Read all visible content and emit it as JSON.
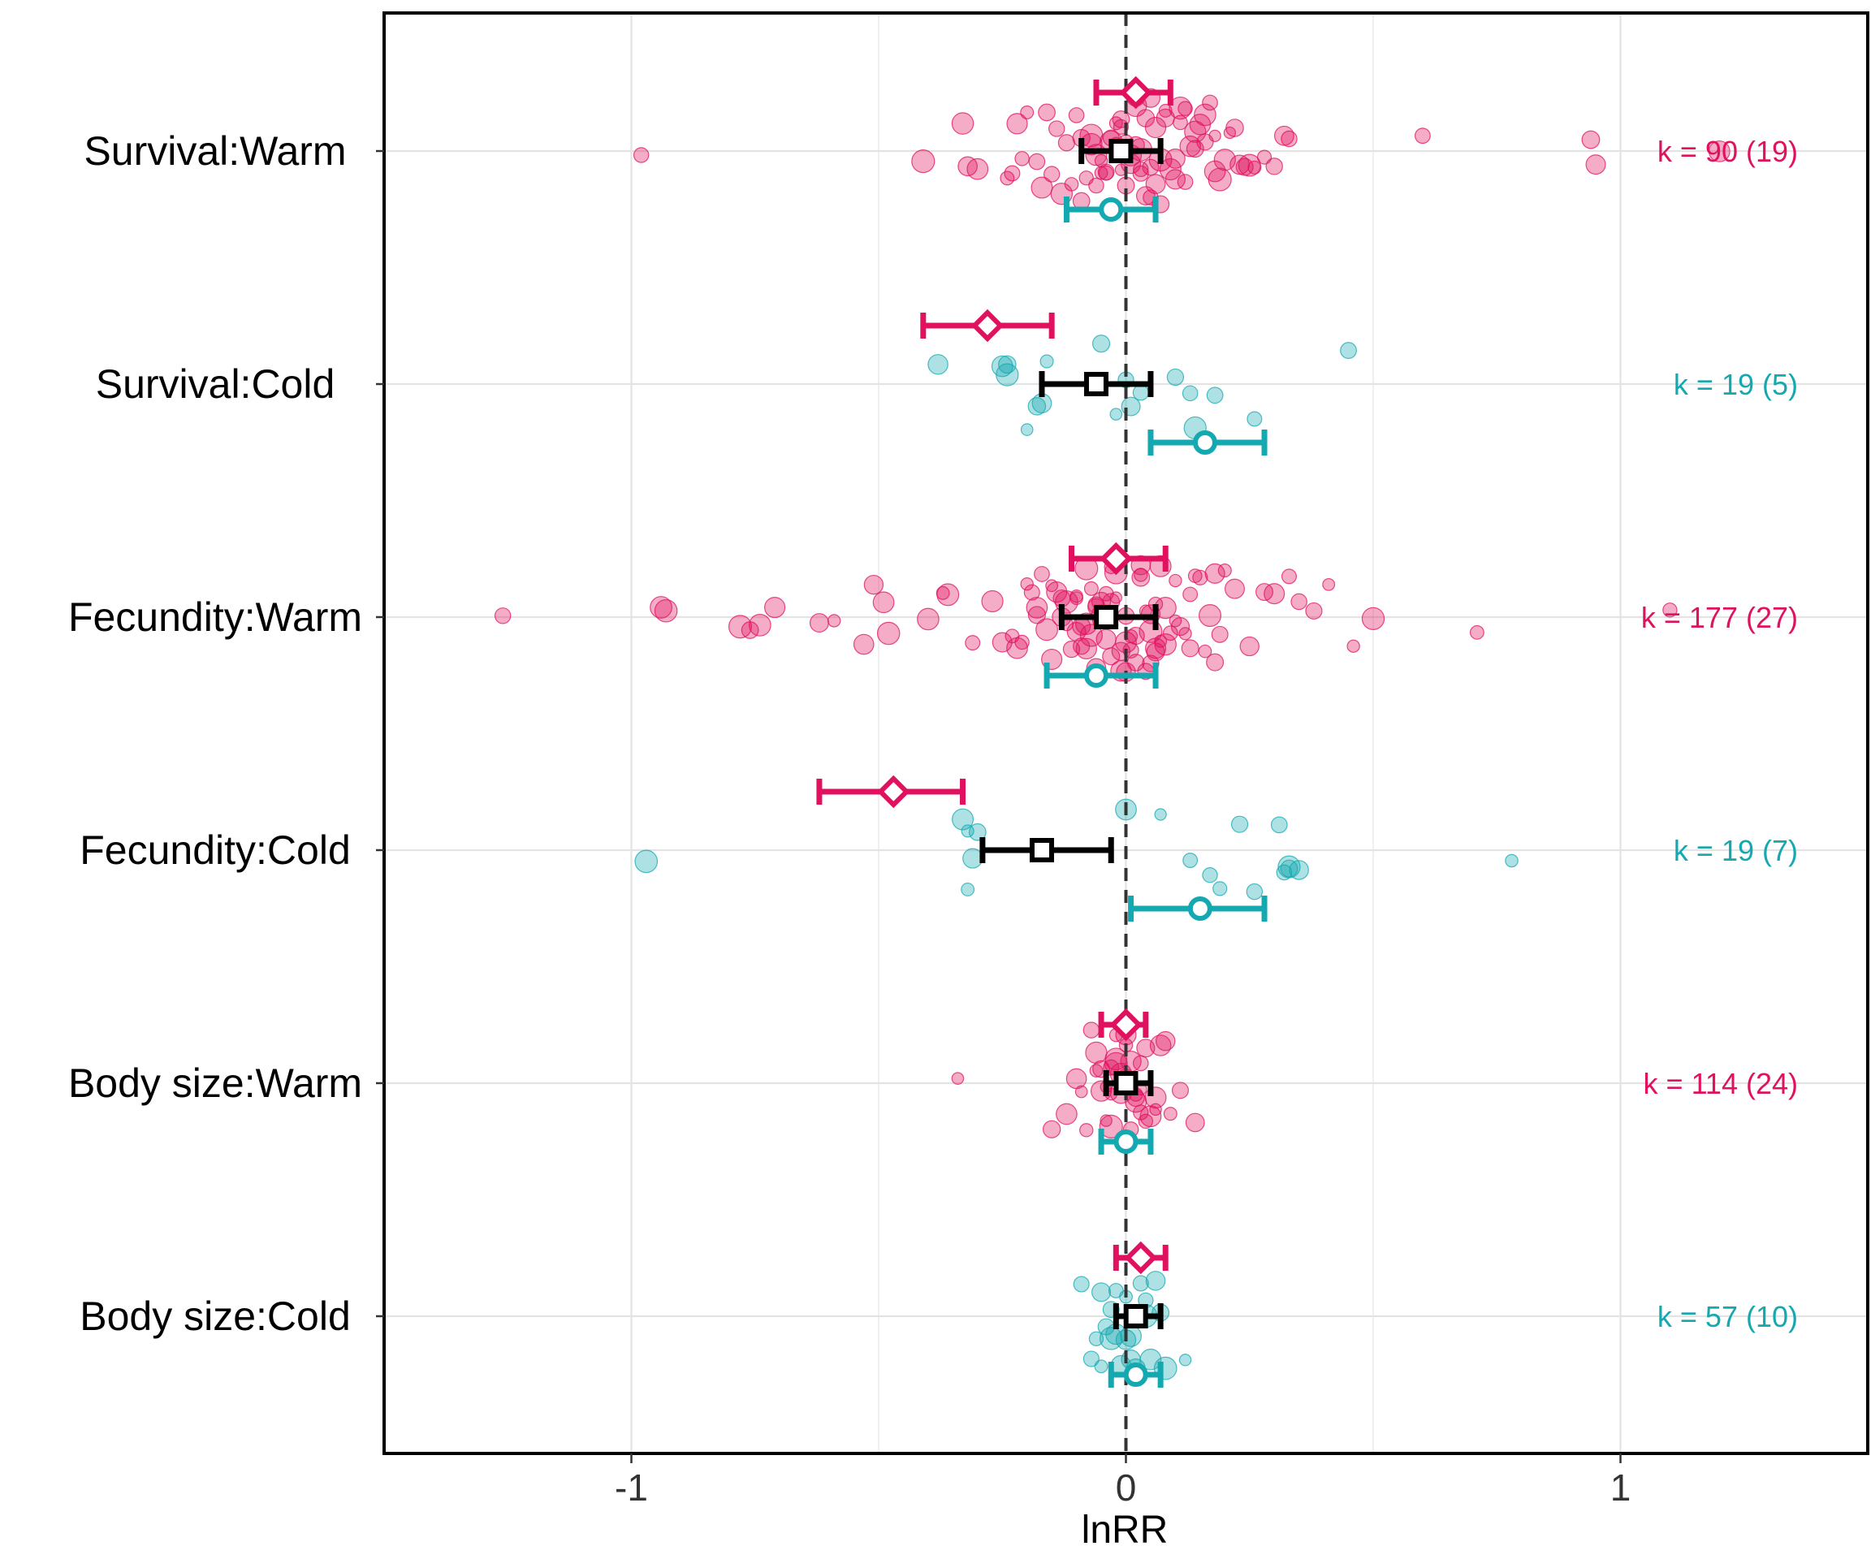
{
  "chart_data": {
    "type": "scatter",
    "xlabel": "lnRR",
    "xlim": [
      -1.5,
      1.5
    ],
    "x_ticks": [
      -1,
      0,
      1
    ],
    "x_tick_labels": [
      "-1",
      "0",
      "1"
    ],
    "x_minor_ticks": [
      -1.5,
      -0.5,
      0.5,
      1.5
    ],
    "grid": true,
    "reference_line": 0,
    "colors": {
      "warm": "#E0115F",
      "cold": "#14A8B0",
      "overall": "#000000"
    },
    "series": [
      {
        "name": "Warm",
        "marker": "diamond",
        "color": "#E0115F"
      },
      {
        "name": "Overall",
        "marker": "square",
        "color": "#000000"
      },
      {
        "name": "Cold",
        "marker": "circle",
        "color": "#14A8B0"
      }
    ],
    "categories": [
      {
        "label": "Survival:Warm",
        "k_label": "k = 90 (19)",
        "k_color": "#E0115F",
        "point_color": "#E0115F",
        "estimates": {
          "warm": {
            "mean": 0.02,
            "lo": -0.06,
            "hi": 0.09
          },
          "overall": {
            "mean": -0.01,
            "lo": -0.09,
            "hi": 0.07
          },
          "cold": {
            "mean": -0.03,
            "lo": -0.12,
            "hi": 0.06
          }
        },
        "points": [
          -0.98,
          -0.41,
          -0.32,
          -0.33,
          -0.3,
          -0.23,
          -0.24,
          -0.21,
          -0.22,
          -0.17,
          -0.16,
          -0.15,
          -0.14,
          -0.13,
          -0.12,
          -0.11,
          -0.1,
          -0.09,
          -0.09,
          -0.08,
          -0.07,
          -0.06,
          -0.06,
          -0.05,
          -0.05,
          -0.04,
          -0.04,
          -0.03,
          -0.03,
          -0.02,
          -0.02,
          -0.01,
          -0.01,
          0.0,
          0.0,
          0.01,
          0.01,
          0.02,
          0.02,
          0.03,
          0.03,
          0.04,
          0.04,
          0.05,
          0.05,
          0.06,
          0.06,
          0.07,
          0.08,
          0.09,
          0.1,
          0.11,
          0.12,
          0.13,
          0.14,
          0.15,
          0.16,
          0.17,
          0.18,
          0.19,
          0.2,
          0.21,
          0.22,
          0.23,
          0.24,
          0.25,
          0.26,
          0.28,
          0.3,
          0.32,
          0.33,
          0.6,
          0.94,
          0.95,
          1.2,
          0.12,
          0.14,
          0.16,
          0.18,
          -0.18,
          -0.2,
          0.08,
          0.1,
          0.03,
          -0.01,
          0.05,
          0.02,
          -0.07,
          0.11,
          0.07
        ]
      },
      {
        "label": "Survival:Cold",
        "k_label": "k = 19 (5)",
        "k_color": "#14A8B0",
        "point_color": "#14A8B0",
        "estimates": {
          "warm": {
            "mean": -0.28,
            "lo": -0.41,
            "hi": -0.15
          },
          "overall": {
            "mean": -0.06,
            "lo": -0.17,
            "hi": 0.05
          },
          "cold": {
            "mean": 0.16,
            "lo": 0.05,
            "hi": 0.28
          }
        },
        "points": [
          -0.38,
          -0.25,
          -0.24,
          -0.18,
          -0.17,
          -0.16,
          -0.02,
          -0.05,
          0.0,
          0.01,
          0.03,
          0.1,
          0.13,
          0.14,
          0.18,
          0.26,
          0.45,
          -0.24,
          -0.2
        ]
      },
      {
        "label": "Fecundity:Warm",
        "k_label": "k = 177 (27)",
        "k_color": "#E0115F",
        "point_color": "#E0115F",
        "estimates": {
          "warm": {
            "mean": -0.02,
            "lo": -0.11,
            "hi": 0.08
          },
          "overall": {
            "mean": -0.04,
            "lo": -0.13,
            "hi": 0.06
          },
          "cold": {
            "mean": -0.06,
            "lo": -0.16,
            "hi": 0.06
          }
        },
        "points": [
          -1.26,
          -0.94,
          -0.93,
          -0.78,
          -0.76,
          -0.74,
          -0.71,
          -0.62,
          -0.59,
          -0.53,
          -0.51,
          -0.49,
          -0.48,
          -0.4,
          -0.37,
          -0.36,
          -0.31,
          -0.27,
          -0.25,
          -0.23,
          -0.22,
          -0.21,
          -0.2,
          -0.19,
          -0.18,
          -0.17,
          -0.16,
          -0.15,
          -0.14,
          -0.13,
          -0.12,
          -0.11,
          -0.1,
          -0.1,
          -0.09,
          -0.09,
          -0.08,
          -0.08,
          -0.07,
          -0.07,
          -0.06,
          -0.06,
          -0.05,
          -0.05,
          -0.04,
          -0.04,
          -0.03,
          -0.03,
          -0.02,
          -0.02,
          -0.01,
          -0.01,
          0.0,
          0.0,
          0.01,
          0.01,
          0.02,
          0.02,
          0.03,
          0.03,
          0.04,
          0.04,
          0.05,
          0.05,
          0.06,
          0.06,
          0.07,
          0.07,
          0.08,
          0.09,
          0.1,
          0.11,
          0.12,
          0.13,
          0.14,
          0.15,
          0.16,
          0.17,
          0.18,
          0.19,
          0.2,
          0.22,
          0.25,
          0.28,
          0.3,
          0.33,
          0.35,
          0.38,
          0.41,
          0.46,
          0.5,
          0.71,
          1.1,
          -0.15,
          -0.12,
          -0.1,
          -0.05,
          0.0,
          0.05,
          0.1,
          -0.08,
          0.08,
          -0.03,
          0.03,
          -0.13,
          0.13,
          -0.18,
          0.18,
          -0.06,
          0.06
        ]
      },
      {
        "label": "Fecundity:Cold",
        "k_label": "k = 19 (7)",
        "k_color": "#14A8B0",
        "point_color": "#14A8B0",
        "estimates": {
          "warm": {
            "mean": -0.47,
            "lo": -0.62,
            "hi": -0.33
          },
          "overall": {
            "mean": -0.17,
            "lo": -0.29,
            "hi": -0.03
          },
          "cold": {
            "mean": 0.15,
            "lo": 0.01,
            "hi": 0.28
          }
        },
        "points": [
          -0.97,
          -0.32,
          -0.31,
          -0.3,
          -0.33,
          -0.32,
          0.0,
          0.07,
          0.17,
          0.19,
          0.26,
          0.23,
          0.31,
          0.33,
          0.35,
          0.33,
          0.32,
          0.78,
          0.13
        ]
      },
      {
        "label": "Body size:Warm",
        "k_label": "k = 114 (24)",
        "k_color": "#E0115F",
        "point_color": "#E0115F",
        "estimates": {
          "warm": {
            "mean": 0.0,
            "lo": -0.05,
            "hi": 0.04
          },
          "overall": {
            "mean": 0.0,
            "lo": -0.04,
            "hi": 0.05
          },
          "cold": {
            "mean": 0.0,
            "lo": -0.05,
            "hi": 0.05
          }
        },
        "points": [
          -0.34,
          -0.15,
          -0.12,
          -0.1,
          -0.09,
          -0.08,
          -0.07,
          -0.06,
          -0.05,
          -0.05,
          -0.04,
          -0.04,
          -0.03,
          -0.03,
          -0.02,
          -0.02,
          -0.01,
          -0.01,
          0.0,
          0.0,
          0.01,
          0.01,
          0.02,
          0.02,
          0.03,
          0.03,
          0.04,
          0.04,
          0.05,
          0.06,
          0.07,
          0.08,
          0.09,
          0.11,
          0.14,
          -0.06,
          -0.02,
          0.02,
          0.06,
          -0.03,
          0.03,
          0.0
        ]
      },
      {
        "label": "Body size:Cold",
        "k_label": "k = 57 (10)",
        "k_color": "#14A8B0",
        "point_color": "#14A8B0",
        "estimates": {
          "warm": {
            "mean": 0.03,
            "lo": -0.02,
            "hi": 0.08
          },
          "overall": {
            "mean": 0.02,
            "lo": -0.02,
            "hi": 0.07
          },
          "cold": {
            "mean": 0.02,
            "lo": -0.03,
            "hi": 0.07
          }
        },
        "points": [
          -0.09,
          -0.07,
          -0.06,
          -0.05,
          -0.04,
          -0.03,
          -0.02,
          -0.01,
          0.0,
          0.01,
          0.02,
          0.03,
          0.04,
          0.05,
          0.06,
          0.07,
          0.08,
          0.12,
          -0.05,
          -0.02,
          0.01,
          0.04,
          0.02,
          0.0,
          0.03,
          -0.03
        ]
      }
    ]
  }
}
